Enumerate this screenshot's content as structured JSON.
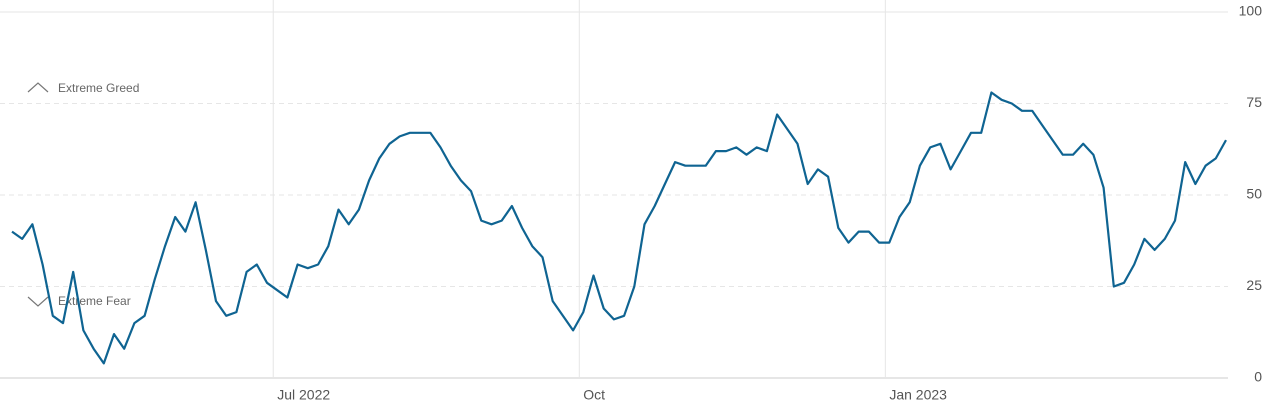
{
  "chart_data": {
    "type": "line",
    "categories": [
      null,
      null,
      null,
      null,
      null,
      null,
      null,
      null,
      null,
      null,
      null,
      null,
      null,
      null,
      null,
      null,
      null,
      null,
      null,
      null,
      null,
      null,
      null,
      null,
      null,
      null,
      "Jul 2022",
      null,
      null,
      null,
      null,
      null,
      null,
      null,
      null,
      null,
      null,
      null,
      null,
      null,
      null,
      null,
      null,
      null,
      null,
      null,
      null,
      null,
      null,
      null,
      null,
      null,
      null,
      null,
      null,
      null,
      "Oct",
      null,
      null,
      null,
      null,
      null,
      null,
      null,
      null,
      null,
      null,
      null,
      null,
      null,
      null,
      null,
      null,
      null,
      null,
      null,
      null,
      null,
      null,
      null,
      null,
      null,
      null,
      null,
      null,
      null,
      "Jan 2023",
      null,
      null,
      null,
      null,
      null,
      null,
      null,
      null,
      null,
      null,
      null,
      null,
      null,
      null,
      null,
      null,
      null,
      null,
      null,
      null,
      null,
      null,
      null,
      null,
      null,
      null,
      null,
      null,
      null,
      null,
      null,
      null,
      null
    ],
    "values": [
      40,
      38,
      42,
      31,
      17,
      15,
      29,
      13,
      8,
      4,
      12,
      8,
      15,
      17,
      27,
      36,
      44,
      40,
      48,
      35,
      21,
      17,
      18,
      29,
      31,
      26,
      24,
      22,
      31,
      30,
      31,
      36,
      46,
      42,
      46,
      54,
      60,
      64,
      66,
      67,
      67,
      67,
      63,
      58,
      54,
      51,
      43,
      42,
      43,
      47,
      41,
      36,
      33,
      21,
      17,
      13,
      18,
      28,
      19,
      16,
      17,
      25,
      42,
      47,
      53,
      59,
      58,
      58,
      58,
      62,
      62,
      63,
      61,
      63,
      62,
      72,
      68,
      64,
      53,
      57,
      55,
      41,
      37,
      40,
      40,
      37,
      37,
      44,
      48,
      58,
      63,
      64,
      57,
      62,
      67,
      67,
      78,
      76,
      75,
      73,
      73,
      69,
      65,
      61,
      61,
      64,
      61,
      52,
      25,
      26,
      31,
      38,
      35,
      38,
      43,
      59,
      53,
      58,
      60,
      65
    ],
    "color": "#0f6492",
    "ylim": [
      0,
      100
    ],
    "yticks": [
      0,
      25,
      50,
      75,
      100
    ],
    "grid": true,
    "annotations": [
      "Extreme Greed",
      "Extreme Fear"
    ]
  }
}
